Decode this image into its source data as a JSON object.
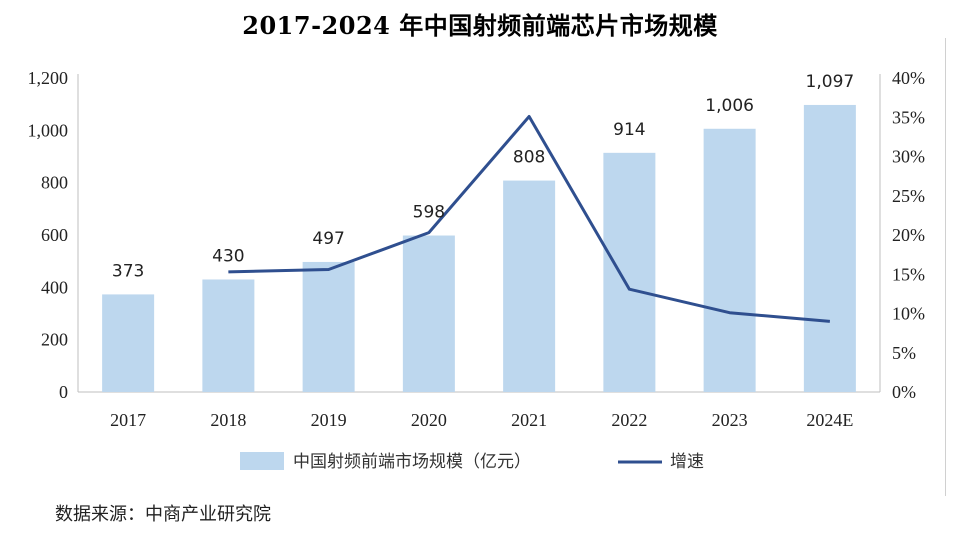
{
  "chart_data": {
    "type": "bar",
    "title": "2017-2024 年中国射频前端芯片市场规模",
    "categories": [
      "2017",
      "2018",
      "2019",
      "2020",
      "2021",
      "2022",
      "2023",
      "2024E"
    ],
    "series": [
      {
        "name": "中国射频前端市场规模（亿元）",
        "type": "bar",
        "axis": "left",
        "values": [
          373,
          430,
          497,
          598,
          808,
          914,
          1006,
          1097
        ],
        "labels": [
          "373",
          "430",
          "497",
          "598",
          "808",
          "914",
          "1,006",
          "1,097"
        ]
      },
      {
        "name": "增速",
        "type": "line",
        "axis": "right",
        "values": [
          null,
          15.3,
          15.6,
          20.3,
          35.1,
          13.1,
          10.1,
          9.0
        ]
      }
    ],
    "y_left": {
      "range": [
        0,
        1200
      ],
      "ticks": [
        "0",
        "200",
        "400",
        "600",
        "800",
        "1,000",
        "1,200"
      ]
    },
    "y_right": {
      "range": [
        0,
        40
      ],
      "ticks": [
        "0%",
        "5%",
        "10%",
        "15%",
        "20%",
        "25%",
        "30%",
        "35%",
        "40%"
      ]
    },
    "grid": false,
    "legend": "bottom",
    "colors": {
      "bar": "#bdd7ee",
      "line": "#2f4f8f"
    }
  },
  "source": "数据来源：中商产业研究院"
}
